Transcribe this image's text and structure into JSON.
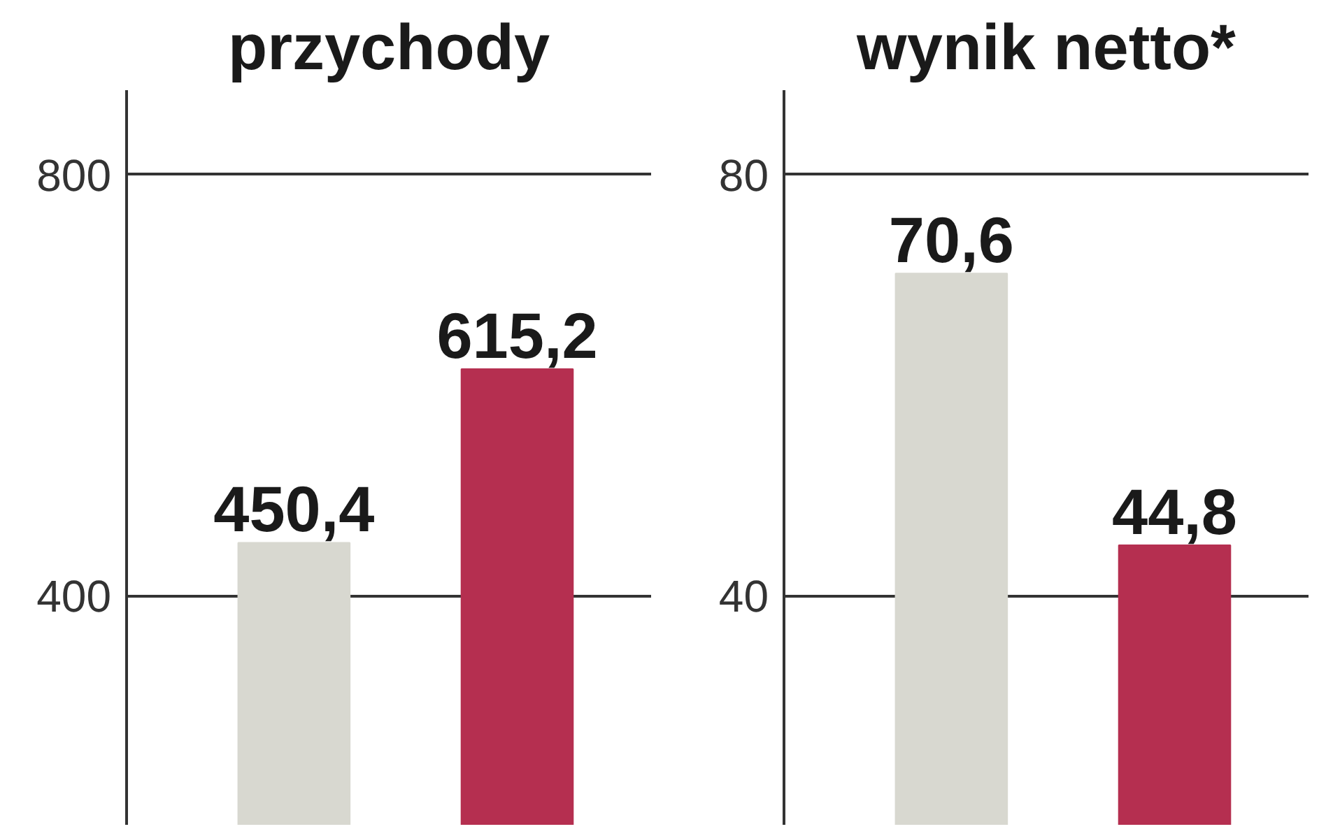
{
  "chart_data": [
    {
      "type": "bar",
      "title": "przychody",
      "categories": [
        null,
        null
      ],
      "series": [
        {
          "colors": [
            "#d8d8d0",
            "#b52f50"
          ],
          "values": [
            450.4,
            615.2
          ],
          "value_labels": [
            "450,4",
            "615,2"
          ]
        }
      ],
      "ylim": [
        182,
        880
      ],
      "yticks": [
        400,
        800
      ],
      "grid": "y",
      "tick_labels": "y"
    },
    {
      "type": "bar",
      "title": "wynik netto*",
      "categories": [
        null,
        null
      ],
      "series": [
        {
          "colors": [
            "#d8d8d0",
            "#b52f50"
          ],
          "values": [
            70.6,
            44.8
          ],
          "value_labels": [
            "70,6",
            "44,8"
          ]
        }
      ],
      "ylim": [
        18.2,
        88
      ],
      "yticks": [
        40,
        80
      ],
      "grid": "y",
      "tick_labels": "y"
    }
  ]
}
